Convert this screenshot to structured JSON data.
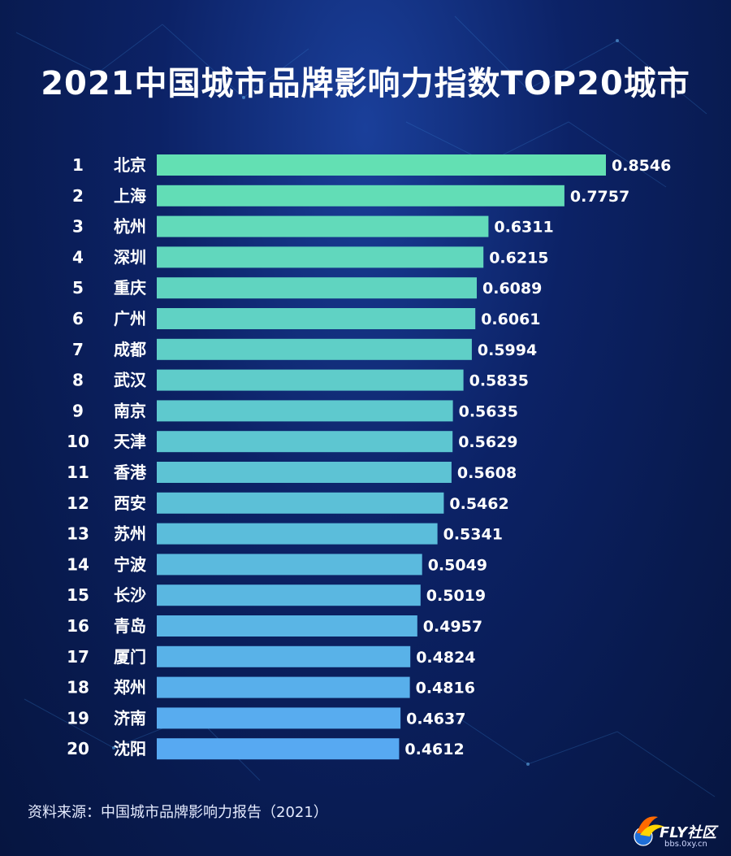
{
  "title": "2021中国城市品牌影响力指数TOP20城市",
  "source": "资料来源：中国城市品牌影响力报告（2021）",
  "watermark": {
    "brand": "FLY社区",
    "site": "bbs.0xy.cn"
  },
  "colors": {
    "bar_top": "#63e0b3",
    "bar_bottom": "#57a9f2",
    "text": "#ffffff"
  },
  "chart_data": {
    "type": "bar",
    "orientation": "horizontal",
    "ranks": [
      "1",
      "2",
      "3",
      "4",
      "5",
      "6",
      "7",
      "8",
      "9",
      "10",
      "11",
      "12",
      "13",
      "14",
      "15",
      "16",
      "17",
      "18",
      "19",
      "20"
    ],
    "categories": [
      "北京",
      "上海",
      "杭州",
      "深圳",
      "重庆",
      "广州",
      "成都",
      "武汉",
      "南京",
      "天津",
      "香港",
      "西安",
      "苏州",
      "宁波",
      "长沙",
      "青岛",
      "厦门",
      "郑州",
      "济南",
      "沈阳"
    ],
    "values": [
      0.8546,
      0.7757,
      0.6311,
      0.6215,
      0.6089,
      0.6061,
      0.5994,
      0.5835,
      0.5635,
      0.5629,
      0.5608,
      0.5462,
      0.5341,
      0.5049,
      0.5019,
      0.4957,
      0.4824,
      0.4816,
      0.4637,
      0.4612
    ],
    "labels": [
      "0.8546",
      "0.7757",
      "0.6311",
      "0.6215",
      "0.6089",
      "0.6061",
      "0.5994",
      "0.5835",
      "0.5635",
      "0.5629",
      "0.5608",
      "0.5462",
      "0.5341",
      "0.5049",
      "0.5019",
      "0.4957",
      "0.4824",
      "0.4816",
      "0.4637",
      "0.4612"
    ],
    "xlim": [
      0,
      0.8546
    ],
    "grid": false
  }
}
